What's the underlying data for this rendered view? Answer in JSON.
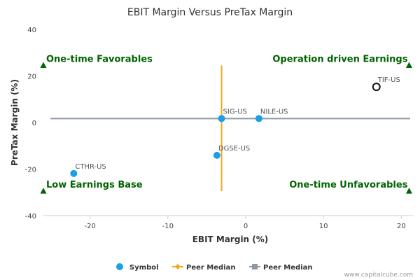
{
  "chart_data": {
    "type": "scatter",
    "title": "EBIT Margin Versus PreTax Margin",
    "xlabel": "EBIT Margin (%)",
    "ylabel": "PreTax Margin (%)",
    "xlim": [
      -26,
      21.5
    ],
    "ylim": [
      -40,
      40
    ],
    "xticks": [
      -20,
      -10,
      0,
      10,
      20
    ],
    "yticks": [
      -40,
      -20,
      0,
      20,
      40
    ],
    "colors": {
      "symbol": "#1aa0e8",
      "peer_median_x": "#f5a623",
      "peer_median_y": "#8e9aa6",
      "quadrant": "#006400",
      "highlight_stroke": "#111111"
    },
    "points": [
      {
        "name": "TIF-US",
        "x": 16.8,
        "y": 15.3,
        "highlight": true
      },
      {
        "name": "SIG-US",
        "x": -3.1,
        "y": 1.7,
        "highlight": false
      },
      {
        "name": "NILE-US",
        "x": 1.7,
        "y": 1.7,
        "highlight": false
      },
      {
        "name": "DGSE-US",
        "x": -3.7,
        "y": -14.1,
        "highlight": false
      },
      {
        "name": "CTHR-US",
        "x": -22.1,
        "y": -21.9,
        "highlight": false
      }
    ],
    "peer_median": {
      "x": -3.1,
      "y": 1.7,
      "x_range": [
        -29.5,
        24.5
      ]
    },
    "quadrants": [
      {
        "label": "One-time Favorables",
        "corner": "top-left",
        "marker_x": -26,
        "marker_y": 24.5
      },
      {
        "label": "Operation driven Earnings",
        "corner": "top-right",
        "marker_x": 21,
        "marker_y": 24.5
      },
      {
        "label": "Low Earnings Base",
        "corner": "bottom-left",
        "marker_x": -26,
        "marker_y": -29.5
      },
      {
        "label": "One-time Unfavorables",
        "corner": "bottom-right",
        "marker_x": 21,
        "marker_y": -29.5
      }
    ],
    "legend": [
      {
        "label": "Symbol",
        "kind": "dot"
      },
      {
        "label": "Peer Median",
        "kind": "line-diamond"
      },
      {
        "label": "Peer Median",
        "kind": "line-square"
      }
    ]
  },
  "credit": "www.capitalcube.com"
}
